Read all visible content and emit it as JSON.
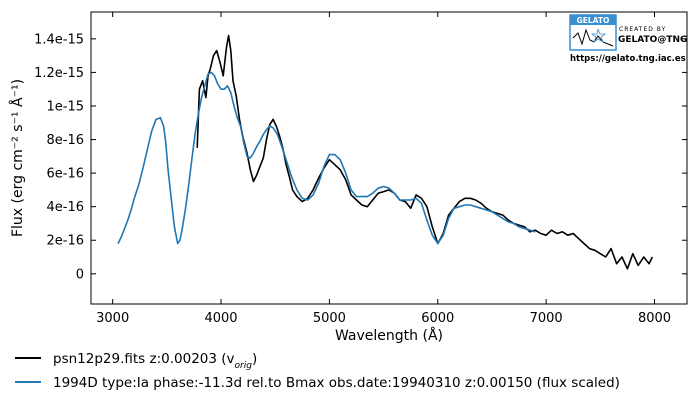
{
  "chart_data": {
    "type": "line",
    "xlabel": "Wavelength (Å)",
    "ylabel": "Flux (erg cm⁻² s⁻¹ Å⁻¹)",
    "xlim": [
      2800,
      8300
    ],
    "ylim": [
      -1.8e-16,
      1.56e-15
    ],
    "xticks": [
      3000,
      4000,
      5000,
      6000,
      7000,
      8000
    ],
    "xtick_labels": [
      "3000",
      "4000",
      "5000",
      "6000",
      "7000",
      "8000"
    ],
    "yticks": [
      0,
      2e-16,
      4e-16,
      6e-16,
      8e-16,
      1e-15,
      1.2e-15,
      1.4e-15
    ],
    "ytick_labels": [
      "0",
      "2e-16",
      "4e-16",
      "6e-16",
      "8e-16",
      "1e-15",
      "1.2e-15",
      "1.4e-15"
    ],
    "grid": false,
    "legend_position": "below",
    "series": [
      {
        "name": "psn12p29.fits  z:0.00203 (v",
        "name_sub": "orig",
        "name_tail": ")",
        "color": "#000000",
        "x": [
          3780,
          3800,
          3830,
          3860,
          3880,
          3900,
          3930,
          3960,
          3990,
          4020,
          4050,
          4070,
          4090,
          4110,
          4140,
          4170,
          4200,
          4240,
          4270,
          4300,
          4330,
          4360,
          4390,
          4420,
          4450,
          4480,
          4510,
          4540,
          4570,
          4600,
          4630,
          4660,
          4700,
          4750,
          4800,
          4850,
          4900,
          4950,
          5000,
          5050,
          5100,
          5150,
          5200,
          5250,
          5300,
          5350,
          5400,
          5450,
          5500,
          5550,
          5600,
          5650,
          5700,
          5750,
          5800,
          5850,
          5900,
          5950,
          6000,
          6050,
          6100,
          6150,
          6200,
          6250,
          6300,
          6350,
          6400,
          6450,
          6500,
          6550,
          6600,
          6650,
          6700,
          6750,
          6800,
          6850,
          6900,
          6950,
          7000,
          7050,
          7100,
          7150,
          7200,
          7250,
          7300,
          7350,
          7400,
          7450,
          7500,
          7550,
          7600,
          7650,
          7700,
          7750,
          7800,
          7850,
          7900,
          7950,
          7980
        ],
        "y": [
          7.5e-16,
          1.1e-15,
          1.15e-15,
          1.05e-15,
          1.18e-15,
          1.22e-15,
          1.3e-15,
          1.33e-15,
          1.26e-15,
          1.18e-15,
          1.35e-15,
          1.42e-15,
          1.33e-15,
          1.15e-15,
          1.06e-15,
          9.2e-16,
          8.2e-16,
          7.2e-16,
          6.2e-16,
          5.5e-16,
          5.9e-16,
          6.4e-16,
          6.9e-16,
          8e-16,
          8.9e-16,
          9.2e-16,
          8.8e-16,
          8.2e-16,
          7.5e-16,
          6.5e-16,
          5.8e-16,
          5e-16,
          4.6e-16,
          4.3e-16,
          4.5e-16,
          5e-16,
          5.7e-16,
          6.3e-16,
          6.8e-16,
          6.5e-16,
          6.2e-16,
          5.6e-16,
          4.7e-16,
          4.4e-16,
          4.1e-16,
          4e-16,
          4.4e-16,
          4.8e-16,
          4.9e-16,
          5e-16,
          4.8e-16,
          4.4e-16,
          4.3e-16,
          3.9e-16,
          4.7e-16,
          4.5e-16,
          4e-16,
          2.8e-16,
          1.8e-16,
          2.4e-16,
          3.5e-16,
          3.9e-16,
          4.3e-16,
          4.5e-16,
          4.5e-16,
          4.4e-16,
          4.2e-16,
          3.9e-16,
          3.7e-16,
          3.6e-16,
          3.5e-16,
          3.2e-16,
          3e-16,
          2.9e-16,
          2.8e-16,
          2.5e-16,
          2.6e-16,
          2.4e-16,
          2.3e-16,
          2.6e-16,
          2.4e-16,
          2.5e-16,
          2.3e-16,
          2.4e-16,
          2.1e-16,
          1.8e-16,
          1.5e-16,
          1.4e-16,
          1.2e-16,
          1e-16,
          1.5e-16,
          6e-17,
          1e-16,
          3e-17,
          1.2e-16,
          5e-17,
          1e-16,
          6e-17,
          1e-16
        ]
      },
      {
        "name": "1994D  type:Ia  phase:-11.3d rel.to Bmax  obs.date:19940310  z:0.00150  (flux scaled)",
        "color": "#1f77b4",
        "x": [
          3050,
          3080,
          3110,
          3140,
          3170,
          3200,
          3240,
          3280,
          3320,
          3360,
          3400,
          3440,
          3470,
          3490,
          3510,
          3540,
          3570,
          3600,
          3620,
          3640,
          3670,
          3700,
          3730,
          3760,
          3790,
          3820,
          3850,
          3880,
          3910,
          3940,
          3970,
          4000,
          4030,
          4060,
          4090,
          4120,
          4150,
          4180,
          4210,
          4240,
          4270,
          4300,
          4330,
          4360,
          4390,
          4420,
          4450,
          4480,
          4520,
          4560,
          4600,
          4650,
          4700,
          4750,
          4800,
          4850,
          4900,
          4950,
          5000,
          5050,
          5100,
          5150,
          5200,
          5250,
          5300,
          5350,
          5400,
          5450,
          5500,
          5550,
          5600,
          5650,
          5700,
          5750,
          5800,
          5850,
          5900,
          5950,
          6000,
          6050,
          6100,
          6150,
          6200,
          6250,
          6300,
          6350,
          6400,
          6450,
          6500,
          6550,
          6600,
          6650,
          6700,
          6750,
          6800,
          6850,
          6900
        ],
        "y": [
          1.8e-16,
          2.2e-16,
          2.7e-16,
          3.2e-16,
          3.8e-16,
          4.5e-16,
          5.3e-16,
          6.3e-16,
          7.4e-16,
          8.5e-16,
          9.2e-16,
          9.3e-16,
          8.8e-16,
          7.8e-16,
          6.3e-16,
          4.5e-16,
          2.8e-16,
          1.8e-16,
          2e-16,
          2.6e-16,
          3.8e-16,
          5.2e-16,
          6.8e-16,
          8.3e-16,
          9.5e-16,
          1.05e-15,
          1.12e-15,
          1.19e-15,
          1.2e-15,
          1.18e-15,
          1.13e-15,
          1.1e-15,
          1.1e-15,
          1.12e-15,
          1.08e-15,
          1e-15,
          9.3e-16,
          8.8e-16,
          7.8e-16,
          7e-16,
          6.9e-16,
          7.2e-16,
          7.6e-16,
          7.9e-16,
          8.3e-16,
          8.6e-16,
          8.8e-16,
          8.7e-16,
          8.3e-16,
          7.6e-16,
          6.8e-16,
          5.8e-16,
          5e-16,
          4.5e-16,
          4.4e-16,
          4.7e-16,
          5.4e-16,
          6.4e-16,
          7.1e-16,
          7.1e-16,
          6.8e-16,
          6e-16,
          5e-16,
          4.6e-16,
          4.6e-16,
          4.6e-16,
          4.8e-16,
          5.1e-16,
          5.2e-16,
          5.1e-16,
          4.8e-16,
          4.4e-16,
          4.4e-16,
          4.4e-16,
          4.5e-16,
          4.2e-16,
          3.2e-16,
          2.3e-16,
          1.8e-16,
          2.3e-16,
          3.3e-16,
          3.9e-16,
          4e-16,
          4.1e-16,
          4.1e-16,
          4e-16,
          3.9e-16,
          3.8e-16,
          3.7e-16,
          3.5e-16,
          3.3e-16,
          3.1e-16,
          3e-16,
          2.8e-16,
          2.7e-16,
          2.6e-16,
          2.5e-16
        ]
      }
    ]
  },
  "logo": {
    "badge": "GELATO",
    "line1": "CREATED BY",
    "line2": "GELATO@TNG",
    "url": "https://gelato.tng.iac.es"
  }
}
